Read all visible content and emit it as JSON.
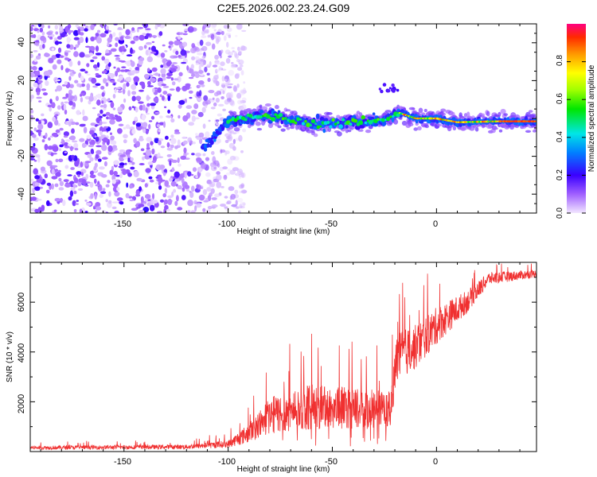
{
  "title": "C2E5.2026.002.23.24.G09",
  "colorbar": {
    "label": "Normalized spectral amplitude",
    "ticks": [
      "0.0",
      "0.2",
      "0.4",
      "0.6",
      "0.8"
    ]
  },
  "chart_data": [
    {
      "type": "heatmap",
      "title": "C2E5.2026.002.23.24.G09",
      "xlabel": "Height of straight line (km)",
      "ylabel": "Frequency (Hz)",
      "xlim": [
        -195,
        48
      ],
      "ylim": [
        -50,
        50
      ],
      "x_ticks": [
        "-150",
        "-100",
        "-50",
        "0"
      ],
      "y_ticks": [
        "-40",
        "-20",
        "0",
        "20",
        "40"
      ],
      "value_range": [
        0,
        1
      ],
      "signal_track": [
        {
          "x": -112,
          "y": -15
        },
        {
          "x": -100,
          "y": -1
        },
        {
          "x": -80,
          "y": 1.5
        },
        {
          "x": -60,
          "y": -3
        },
        {
          "x": -40,
          "y": -2
        },
        {
          "x": -25,
          "y": -1
        },
        {
          "x": -18,
          "y": 3
        },
        {
          "x": -10,
          "y": 0
        },
        {
          "x": 0,
          "y": 0
        },
        {
          "x": 10,
          "y": -2
        },
        {
          "x": 30,
          "y": -1.5
        },
        {
          "x": 48,
          "y": -1.5
        }
      ]
    },
    {
      "type": "line",
      "xlabel": "Height of straight line (km)",
      "ylabel": "SNR (10 * v/v)",
      "xlim": [
        -195,
        48
      ],
      "ylim": [
        0,
        7600
      ],
      "x_ticks": [
        "-150",
        "-100",
        "-50",
        "0"
      ],
      "y_ticks": [
        "2000",
        "4000",
        "6000"
      ],
      "color": "#f03030",
      "envelope": [
        {
          "x": -195,
          "base": 80,
          "amp": 150
        },
        {
          "x": -120,
          "base": 100,
          "amp": 180
        },
        {
          "x": -100,
          "base": 150,
          "amp": 300
        },
        {
          "x": -90,
          "base": 350,
          "amp": 800
        },
        {
          "x": -80,
          "base": 700,
          "amp": 1500
        },
        {
          "x": -60,
          "base": 900,
          "amp": 1800
        },
        {
          "x": -40,
          "base": 900,
          "amp": 1700
        },
        {
          "x": -22,
          "base": 900,
          "amp": 1500
        },
        {
          "x": -19,
          "base": 2800,
          "amp": 2000
        },
        {
          "x": -10,
          "base": 3300,
          "amp": 1800
        },
        {
          "x": 0,
          "base": 4300,
          "amp": 1500
        },
        {
          "x": 15,
          "base": 5600,
          "amp": 900
        },
        {
          "x": 25,
          "base": 6700,
          "amp": 500
        },
        {
          "x": 48,
          "base": 7000,
          "amp": 300
        }
      ]
    }
  ]
}
